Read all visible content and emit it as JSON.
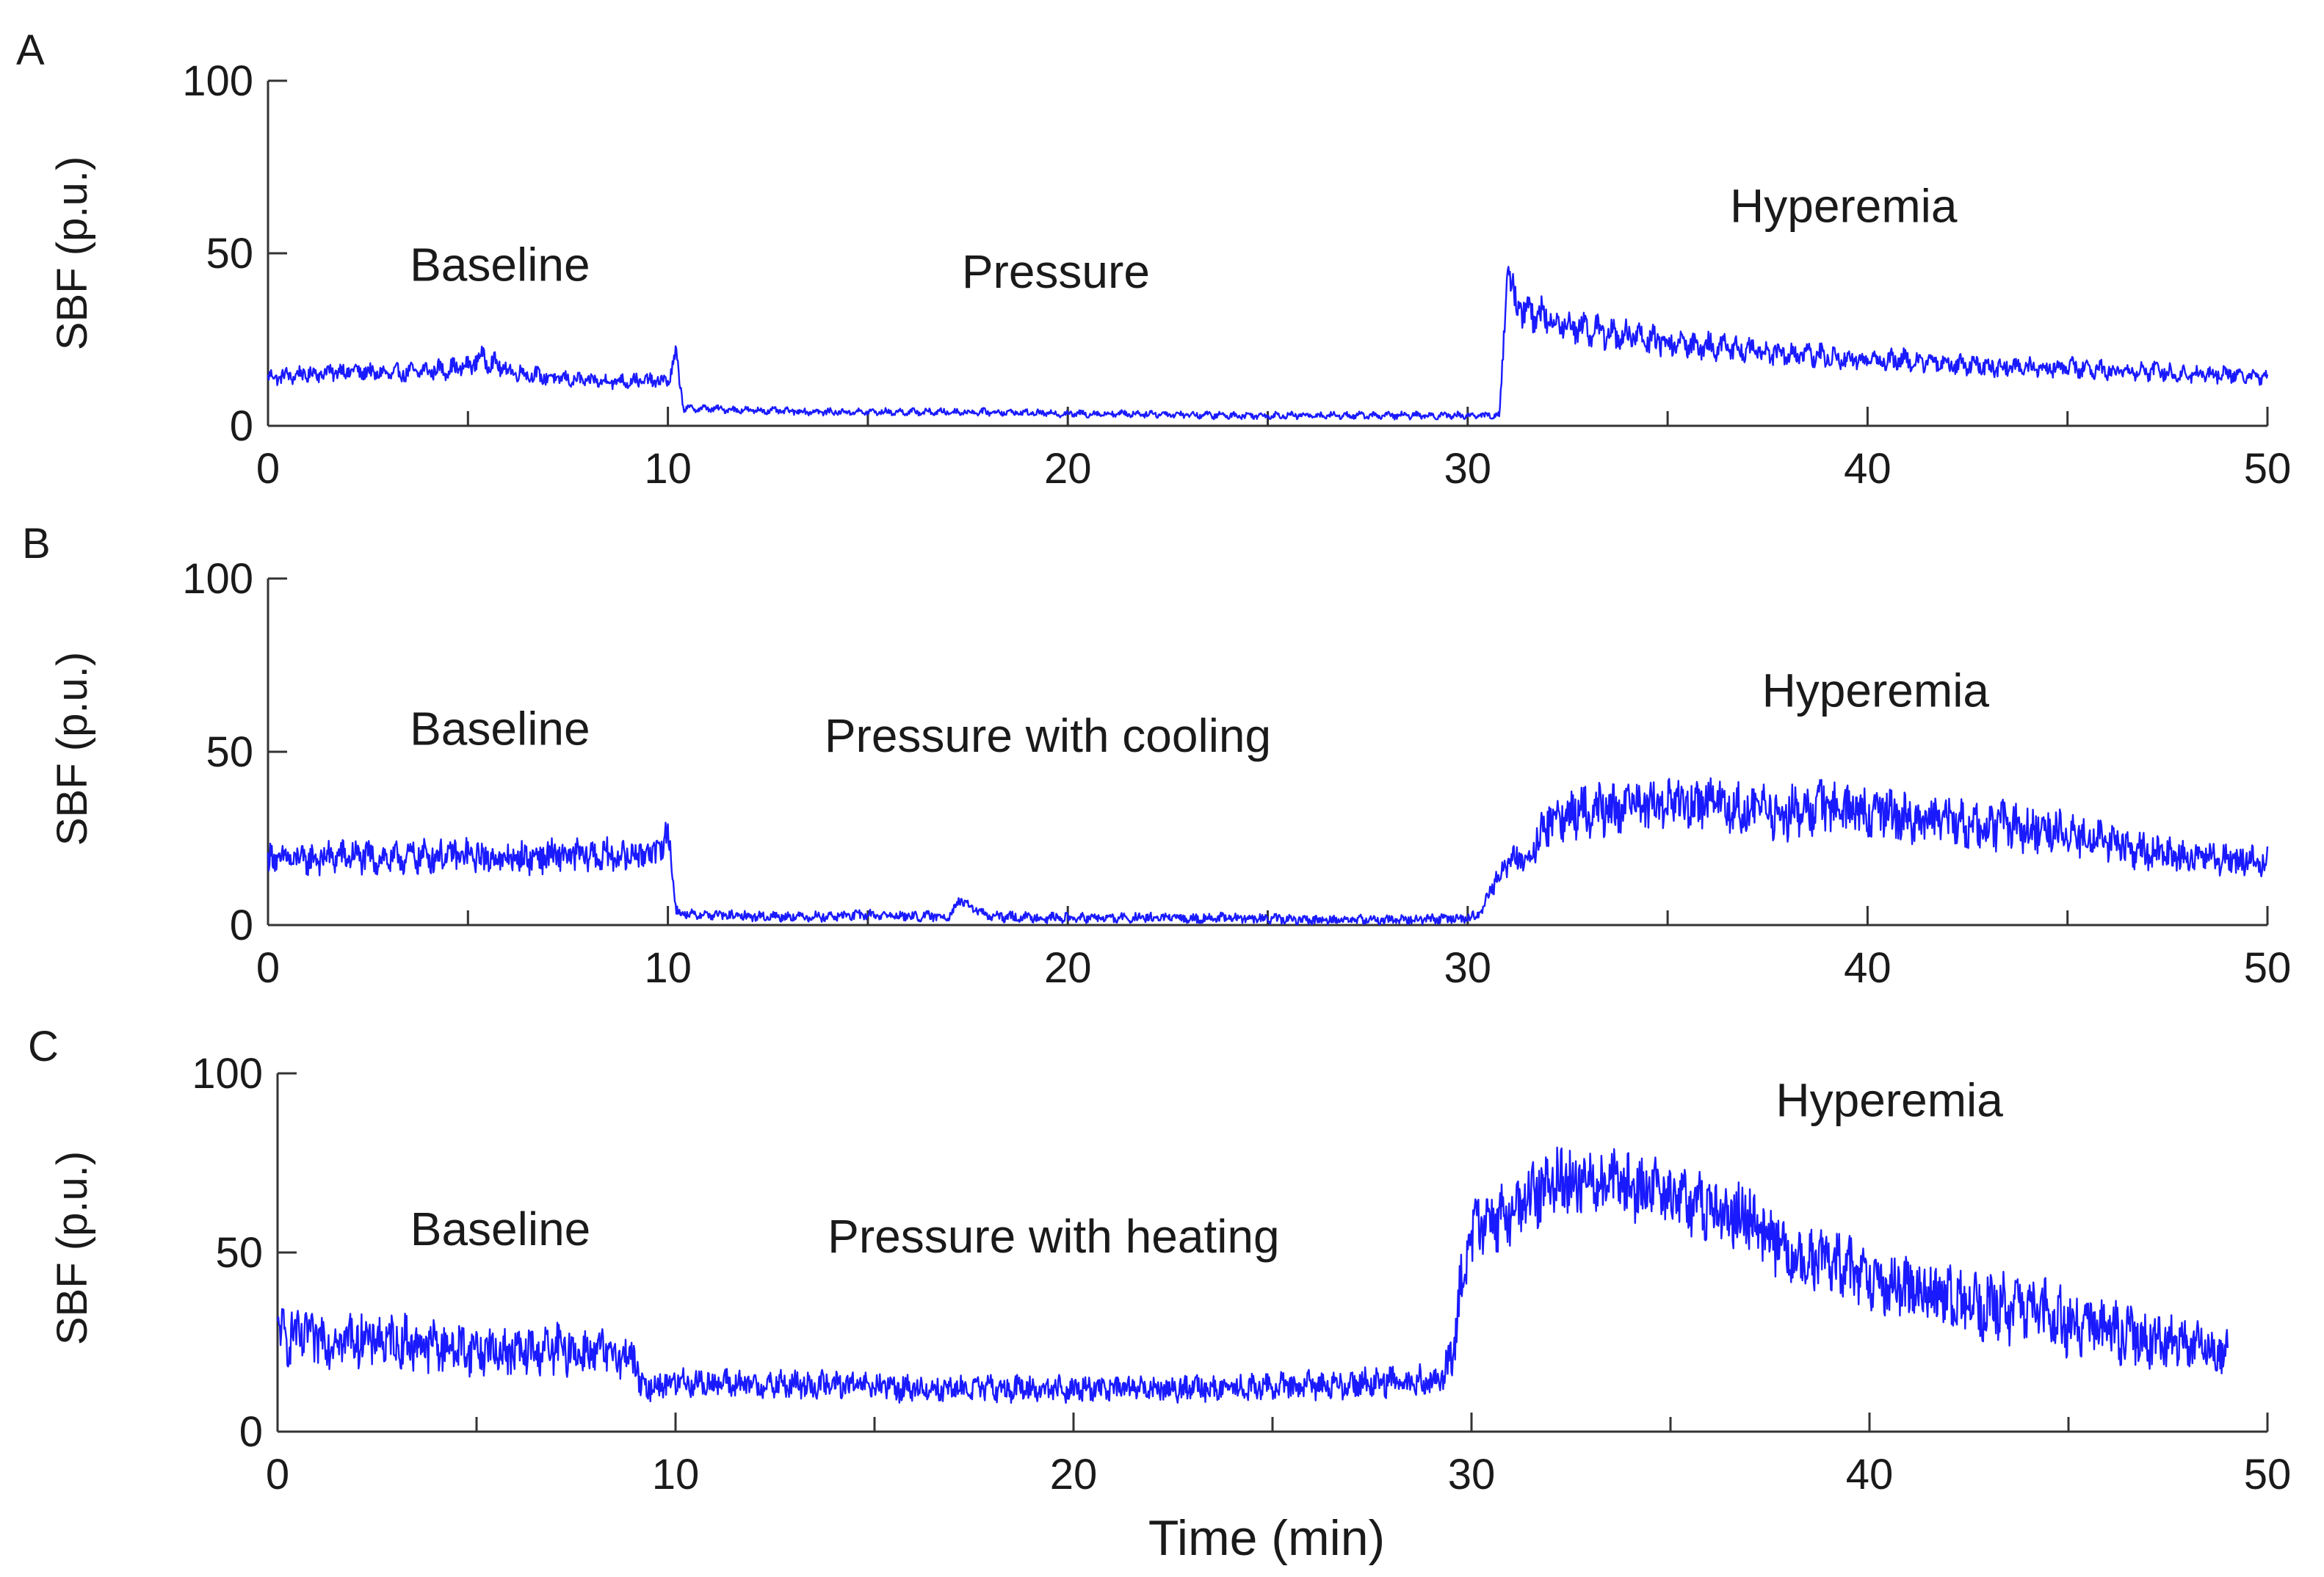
{
  "figure": {
    "xlabel": "Time (min)"
  },
  "chart_data": [
    {
      "type": "line",
      "panel_letter": "A",
      "ylabel": "SBF (p.u.)",
      "xlim": [
        0,
        50
      ],
      "ylim": [
        0,
        100
      ],
      "xticks": [
        0,
        10,
        20,
        30,
        40,
        50
      ],
      "yticks": [
        0,
        50,
        100
      ],
      "line_color": "#1a1aff",
      "annotations": [
        {
          "text": "Baseline",
          "x": 5.8,
          "y": 42
        },
        {
          "text": "Pressure",
          "x": 19.7,
          "y": 40
        },
        {
          "text": "Hyperemia",
          "x": 39.4,
          "y": 59
        }
      ],
      "series": [
        {
          "name": "SBF",
          "x": [
            0,
            1,
            2,
            3,
            4,
            5,
            5.3,
            6,
            7,
            8,
            9,
            10,
            10.2,
            10.4,
            11,
            12,
            14,
            16,
            18,
            20,
            22,
            24,
            26,
            28,
            30,
            30.8,
            31.0,
            31.2,
            31.5,
            32,
            33,
            34,
            35,
            36,
            37,
            38,
            39,
            40,
            41,
            42,
            43,
            44,
            45,
            46,
            47,
            48,
            49,
            50
          ],
          "y": [
            14,
            15,
            16,
            15,
            16,
            17,
            20,
            16,
            14,
            13,
            13,
            13,
            20,
            5,
            5,
            4.5,
            4,
            4,
            4,
            3.5,
            3.5,
            3,
            3,
            3,
            3,
            3,
            47,
            35,
            33,
            31,
            28,
            26,
            24,
            23,
            22,
            21,
            20,
            19,
            19,
            18,
            17,
            17,
            17,
            16,
            16,
            15,
            15,
            14
          ],
          "noise": 2.5,
          "oscillation": 1.5
        }
      ]
    },
    {
      "type": "line",
      "panel_letter": "B",
      "ylabel": "SBF (p.u.)",
      "xlim": [
        0,
        50
      ],
      "ylim": [
        0,
        100
      ],
      "xticks": [
        0,
        10,
        20,
        30,
        40,
        50
      ],
      "yticks": [
        0,
        50,
        100
      ],
      "line_color": "#1a1aff",
      "annotations": [
        {
          "text": "Baseline",
          "x": 5.8,
          "y": 52
        },
        {
          "text": "Pressure with cooling",
          "x": 19.5,
          "y": 50
        },
        {
          "text": "Hyperemia",
          "x": 40.2,
          "y": 63
        }
      ],
      "series": [
        {
          "name": "SBF",
          "x": [
            0,
            1,
            2,
            3,
            4,
            5,
            6,
            7,
            8,
            9,
            9.9,
            10.0,
            10.2,
            10.5,
            11,
            12,
            14,
            15,
            16,
            17,
            17.3,
            18,
            20,
            22,
            24,
            26,
            28,
            30,
            30.3,
            30.7,
            31,
            31.5,
            32,
            33,
            34,
            35,
            36,
            37,
            38,
            39,
            40,
            41,
            42,
            43,
            44,
            45,
            46,
            47,
            48,
            49,
            50
          ],
          "y": [
            19,
            19,
            20,
            19,
            20,
            20,
            19,
            20,
            20,
            20,
            22,
            30,
            4,
            3,
            3,
            2.5,
            2.5,
            3,
            2.5,
            2.5,
            7,
            2.5,
            2,
            2,
            2,
            1.5,
            1.5,
            2,
            3,
            13,
            18,
            20,
            30,
            33,
            34,
            35,
            36,
            33,
            32,
            34,
            33,
            31,
            30,
            29,
            28,
            27,
            24,
            21,
            20,
            19,
            18
          ],
          "noise": 4.0,
          "oscillation": 1.5
        }
      ]
    },
    {
      "type": "line",
      "panel_letter": "C",
      "ylabel": "SBF (p.u.)",
      "xlim": [
        0,
        50
      ],
      "ylim": [
        0,
        100
      ],
      "xticks": [
        0,
        10,
        20,
        30,
        40,
        50
      ],
      "yticks": [
        0,
        50,
        100
      ],
      "line_color": "#1a1aff",
      "annotations": [
        {
          "text": "Baseline",
          "x": 5.6,
          "y": 52
        },
        {
          "text": "Pressure with heating",
          "x": 19.5,
          "y": 50
        },
        {
          "text": "Hyperemia",
          "x": 40.5,
          "y": 88
        }
      ],
      "series": [
        {
          "name": "SBF",
          "x": [
            0,
            1,
            2,
            3,
            4,
            5,
            6,
            7,
            8,
            9,
            9.1,
            10,
            12,
            14,
            16,
            18,
            20,
            22,
            24,
            26,
            28,
            29.2,
            29.5,
            29.8,
            30,
            31,
            32,
            33,
            34,
            35,
            36,
            37,
            37.5,
            38,
            39,
            40,
            41,
            42,
            43,
            44,
            45,
            46,
            47,
            48,
            49
          ],
          "y": [
            27,
            26,
            26,
            25,
            24,
            23,
            22,
            23,
            22,
            21,
            12,
            14,
            13,
            13,
            12,
            12,
            12,
            12,
            12,
            13,
            14,
            14,
            20,
            45,
            55,
            62,
            70,
            70,
            68,
            66,
            63,
            60,
            55,
            50,
            47,
            43,
            40,
            37,
            35,
            33,
            31,
            28,
            26,
            24,
            22
          ],
          "noise": 5.0,
          "oscillation": 2.0
        }
      ]
    }
  ]
}
